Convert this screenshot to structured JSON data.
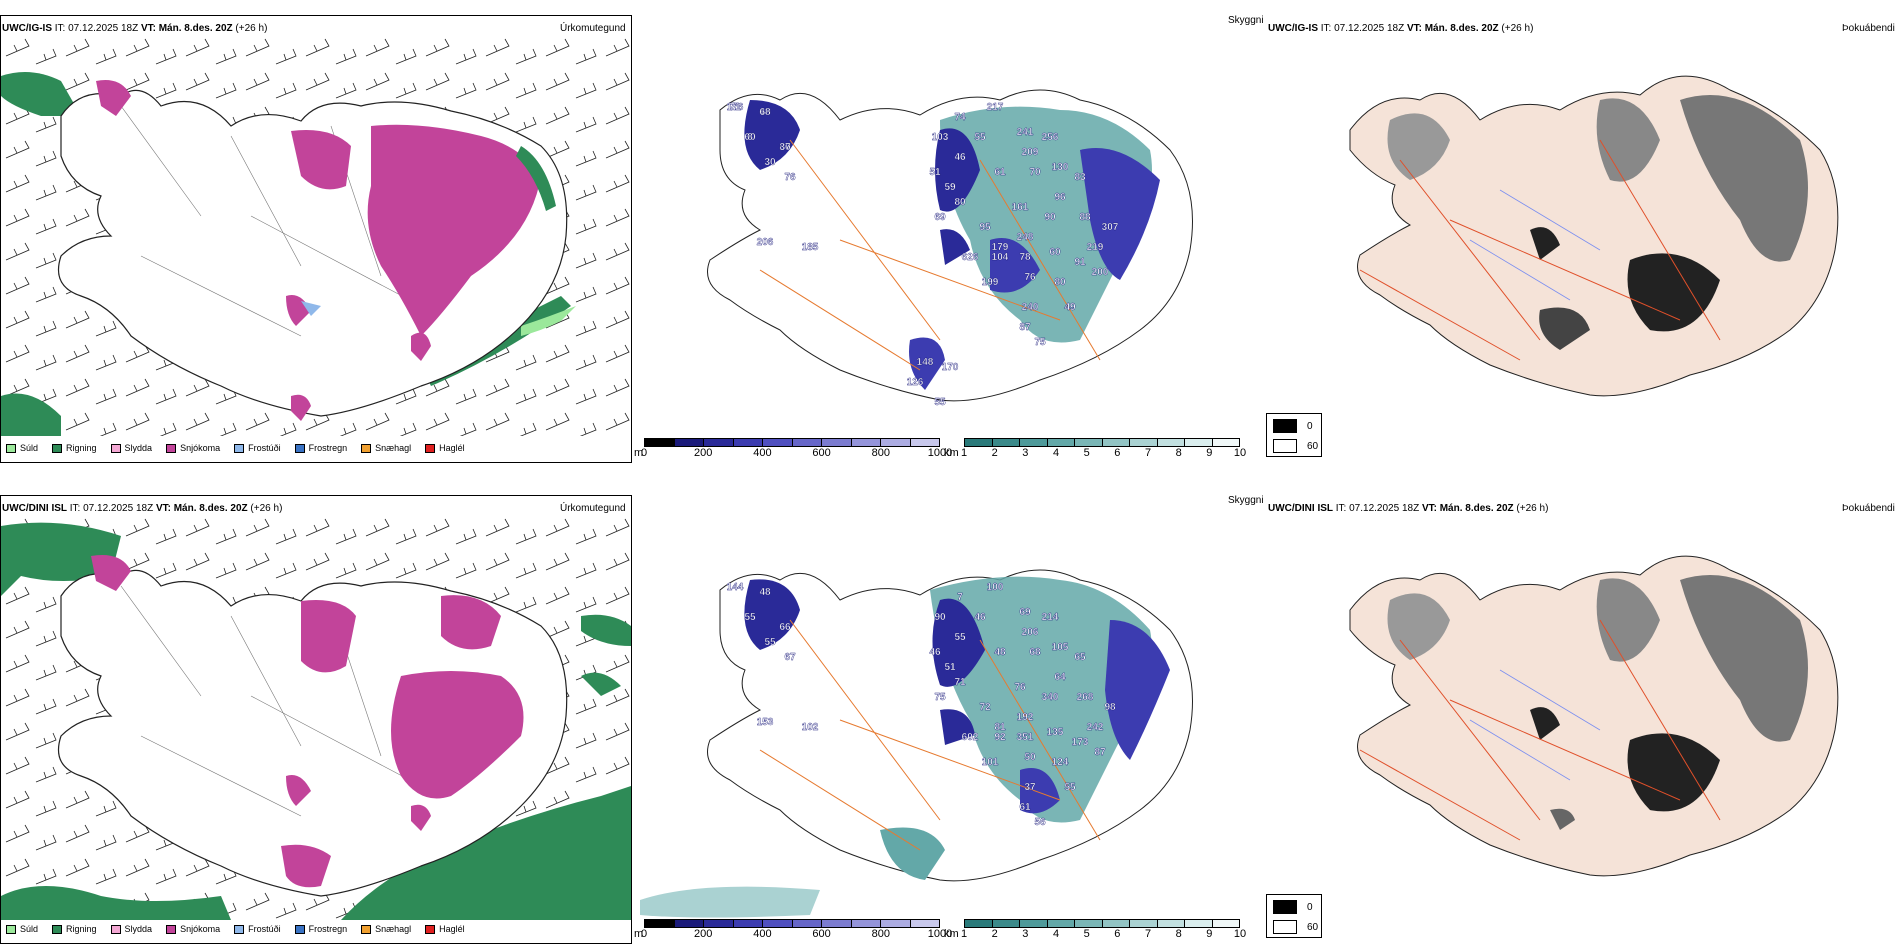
{
  "colors": {
    "sea_green": "#2e8b57",
    "snow": "#c2449a",
    "drizzle": "#9be89b",
    "sleet": "#f4a8d4",
    "frost_drizzle": "#8fb8ea",
    "freezing_rain": "#3a73c4",
    "snow_grains": "#f0a030",
    "hail": "#e02020",
    "land_beige": "#f5e3d8",
    "road_orange": "#e67a30",
    "river_blue": "#7b8ff0"
  },
  "rows": [
    {
      "model": "UWC/IG-IS",
      "it": " IT: 07.12.2025 18Z ",
      "vt_label": "VT: Mán. 8.des. 20Z",
      "lead": " (+26 h)",
      "precip_type_label": "Úrkomutegund",
      "visibility_label": "Skyggni",
      "fog_label": "Þokuábendi",
      "heights": [
        "176",
        "49",
        "60",
        "80",
        "30",
        "76",
        "74",
        "217",
        "241",
        "256",
        "209",
        "130",
        "103",
        "55",
        "46",
        "51",
        "59",
        "80",
        "61",
        "70",
        "83",
        "96",
        "69",
        "95",
        "161",
        "90",
        "248",
        "179",
        "88",
        "307",
        "219",
        "626",
        "104",
        "78",
        "60",
        "91",
        "200",
        "199",
        "76",
        "80",
        "49",
        "240",
        "87",
        "75",
        "206",
        "185",
        "148",
        "170",
        "126",
        "55",
        "71",
        "68",
        "8",
        "37"
      ]
    },
    {
      "model": "UWC/DINI ISL",
      "it": " IT: 07.12.2025 18Z ",
      "vt_label": "VT: Mán. 8.des. 20Z",
      "lead": " (+26 h)",
      "precip_type_label": "Úrkomutegund",
      "visibility_label": "Skyggni",
      "fog_label": "Þokuábendi",
      "heights": [
        "144",
        "48",
        "55",
        "66",
        "55",
        "67",
        "7",
        "100",
        "69",
        "214",
        "206",
        "105",
        "90",
        "46",
        "55",
        "46",
        "51",
        "71",
        "48",
        "68",
        "65",
        "64",
        "75",
        "72",
        "76",
        "340",
        "192",
        "81",
        "268",
        "98",
        "242",
        "602",
        "92",
        "351",
        "135",
        "173",
        "87",
        "101",
        "50",
        "124",
        "55",
        "37",
        "61",
        "56",
        "153",
        "102"
      ]
    }
  ],
  "precip_legend": [
    {
      "label": "Súld",
      "color": "#9be89b"
    },
    {
      "label": "Rigning",
      "color": "#2e8b57"
    },
    {
      "label": "Slydda",
      "color": "#f4a8d4"
    },
    {
      "label": "Snjókoma",
      "color": "#c2449a"
    },
    {
      "label": "Frostúði",
      "color": "#8fb8ea"
    },
    {
      "label": "Frostregn",
      "color": "#3a73c4"
    },
    {
      "label": "Snæhagl",
      "color": "#f0a030"
    },
    {
      "label": "Haglél",
      "color": "#e02020"
    }
  ],
  "height_scale": {
    "unit": "m",
    "ticks": [
      "0",
      "200",
      "400",
      "600",
      "800",
      "1000"
    ],
    "colors": [
      "#000000",
      "#1a1a7a",
      "#2a2a98",
      "#3c3cb0",
      "#5050c0",
      "#6666c8",
      "#7c7cd0",
      "#9494da",
      "#acace2",
      "#c8c8ec"
    ]
  },
  "visibility_scale": {
    "unit": "km",
    "ticks": [
      "1",
      "2",
      "3",
      "4",
      "5",
      "6",
      "7",
      "8",
      "9",
      "10"
    ],
    "colors": [
      "#2a7a7a",
      "#3b8a8a",
      "#4e9a9a",
      "#63a8a8",
      "#7ab6b6",
      "#92c4c4",
      "#aad2d2",
      "#c2e0e0",
      "#daeeee",
      "#f0f8f8"
    ]
  },
  "fog_scale": [
    {
      "label": "0",
      "color": "#000000"
    },
    {
      "label": "60",
      "color": "#ffffff"
    }
  ]
}
